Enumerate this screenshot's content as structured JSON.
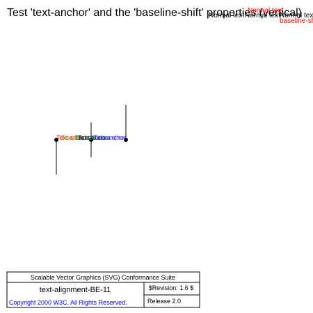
{
  "test": {
    "title": "Test 'text-anchor' and the 'baseline-shift' properties (vertical)",
    "sample_text": "Text anchor",
    "normal_text": "Normal text",
    "baseline_shift_text": "baseline-shift"
  },
  "footer": {
    "suite": "Scalable Vector Graphics (SVG) Conformance Suite",
    "test_name": "text-alignment-BE-11",
    "revision": "$Revision: 1.6 $",
    "copyright": "Copyright 2000 W3C. All Rights Reserved.",
    "release": "Release 2.0"
  },
  "colors": {
    "text": "#000000",
    "anchor_start": "#ff0000",
    "anchor_middle": "#008000",
    "anchor_end": "#0000ff",
    "copyright": "#0000ff",
    "baseline_shift": "#ff0000"
  }
}
